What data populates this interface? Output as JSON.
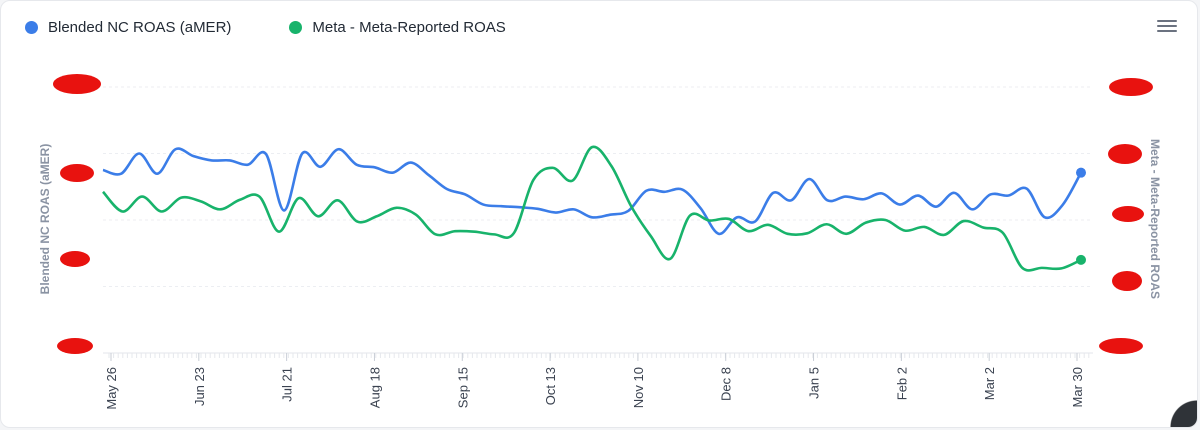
{
  "legend": [
    {
      "label": "Blended NC ROAS (aMER)",
      "color": "#3b7de8"
    },
    {
      "label": "Meta - Meta-Reported ROAS",
      "color": "#18b36b"
    }
  ],
  "menu": {
    "icon": "hamburger-menu-icon"
  },
  "chart_data": {
    "type": "line",
    "yaxis_left_label": "Blended NC ROAS (aMER)",
    "yaxis_right_label": "Meta - Meta-Reported ROAS",
    "x_tick_labels": [
      "May 26",
      "Jun 23",
      "Jul 21",
      "Aug 18",
      "Sep 15",
      "Oct 13",
      "Nov 10",
      "Dec 8",
      "Jan 5",
      "Feb 2",
      "Mar 2",
      "Mar 30"
    ],
    "grid": "horizontal",
    "series": [
      {
        "name": "Blended NC ROAS (aMER)",
        "color": "#3b7de8",
        "values": [
          0.688,
          0.674,
          0.75,
          0.674,
          0.766,
          0.74,
          0.724,
          0.724,
          0.708,
          0.748,
          0.536,
          0.75,
          0.7,
          0.766,
          0.708,
          0.698,
          0.678,
          0.716,
          0.668,
          0.616,
          0.596,
          0.558,
          0.552,
          0.548,
          0.542,
          0.528,
          0.54,
          0.51,
          0.52,
          0.534,
          0.61,
          0.606,
          0.614,
          0.544,
          0.448,
          0.51,
          0.494,
          0.602,
          0.574,
          0.654,
          0.574,
          0.588,
          0.578,
          0.6,
          0.558,
          0.592,
          0.55,
          0.602,
          0.54,
          0.596,
          0.592,
          0.618,
          0.51,
          0.558,
          0.678
        ]
      },
      {
        "name": "Meta - Meta-Reported ROAS",
        "color": "#18b36b",
        "values": [
          0.606,
          0.532,
          0.588,
          0.532,
          0.584,
          0.57,
          0.54,
          0.576,
          0.588,
          0.456,
          0.582,
          0.514,
          0.574,
          0.494,
          0.514,
          0.546,
          0.52,
          0.446,
          0.458,
          0.456,
          0.446,
          0.45,
          0.65,
          0.696,
          0.648,
          0.774,
          0.702,
          0.552,
          0.44,
          0.354,
          0.516,
          0.498,
          0.504,
          0.458,
          0.482,
          0.448,
          0.45,
          0.484,
          0.448,
          0.49,
          0.5,
          0.46,
          0.474,
          0.444,
          0.496,
          0.472,
          0.452,
          0.32,
          0.32,
          0.318,
          0.35
        ]
      }
    ]
  }
}
